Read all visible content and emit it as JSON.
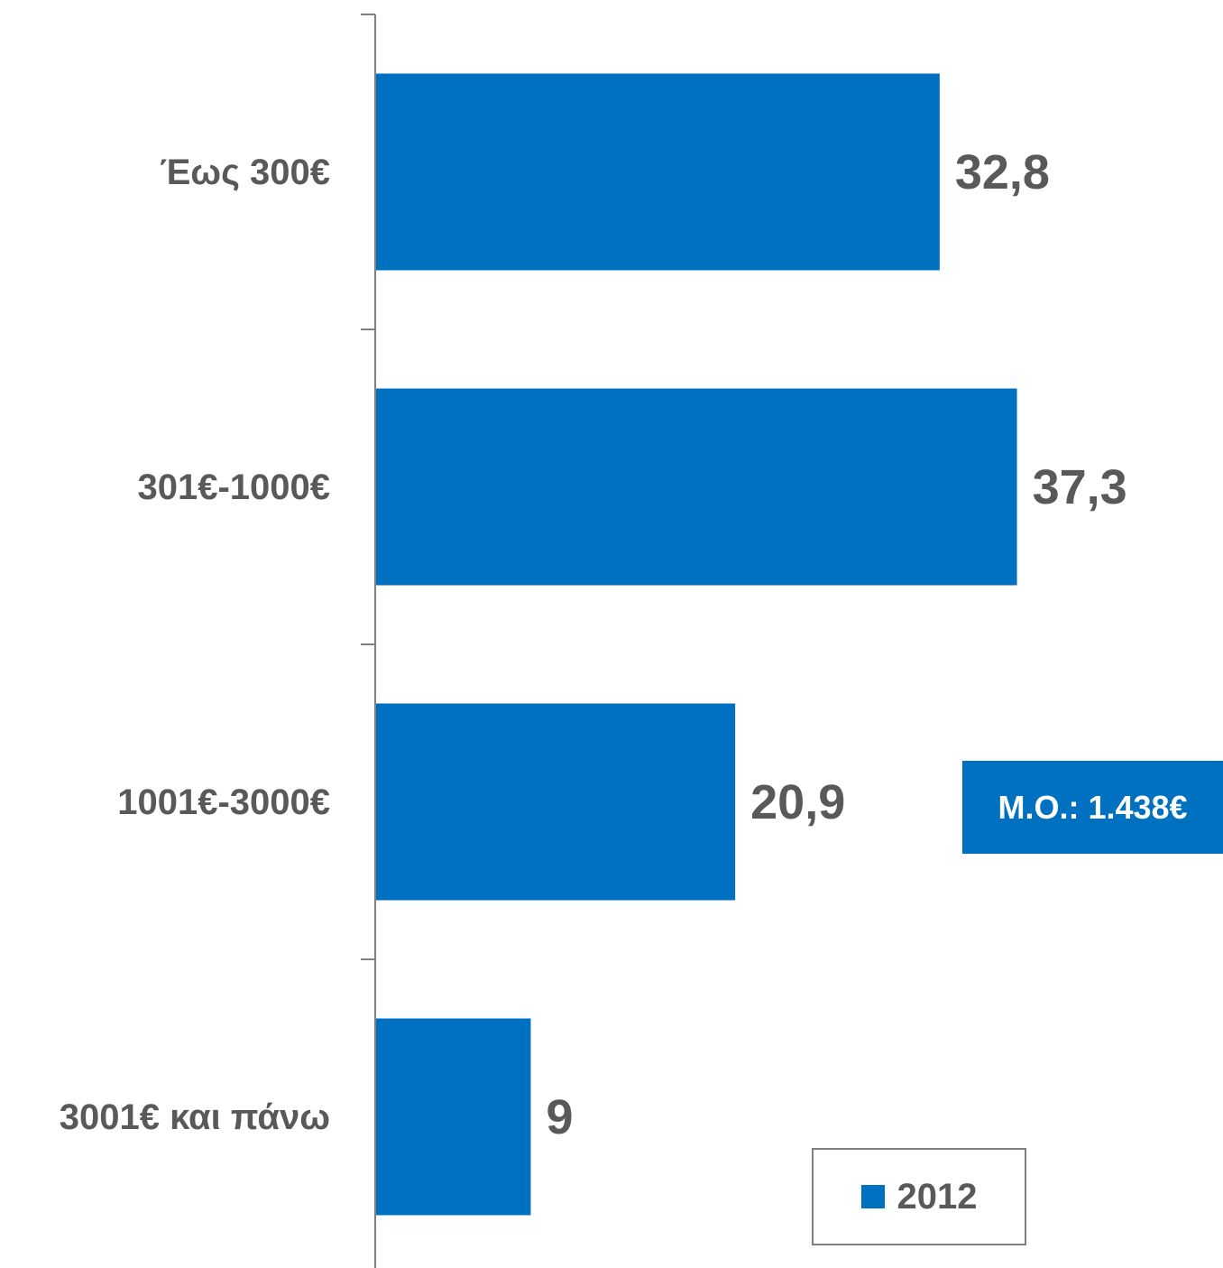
{
  "chart_data": {
    "type": "bar",
    "orientation": "horizontal",
    "categories": [
      "Έως 300€",
      "301€-1000€",
      "1001€-3000€",
      "3001€ και πάνω"
    ],
    "series": [
      {
        "name": "2012",
        "values": [
          32.8,
          37.3,
          20.9,
          9
        ],
        "color": "#0070C0"
      }
    ],
    "data_labels": [
      "32,8",
      "37,3",
      "20,9",
      "9"
    ],
    "xlim": [
      0,
      49.6
    ],
    "grid": false,
    "legend_position": "bottom-right",
    "legend": [
      "2012"
    ],
    "annotation": "Μ.Ο.: 1.438€"
  }
}
